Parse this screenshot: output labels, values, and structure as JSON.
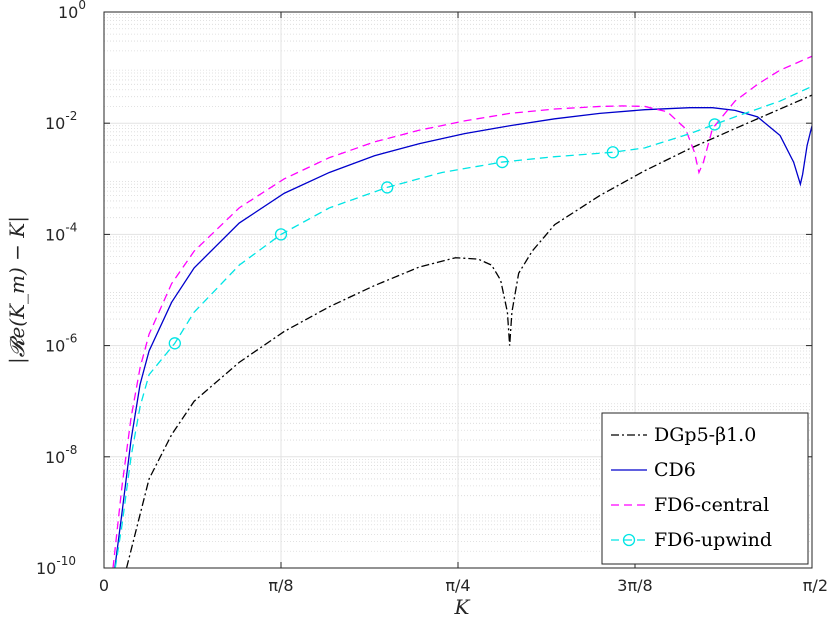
{
  "chart_data": {
    "type": "line",
    "xlabel": "K",
    "ylabel": "|𝓡e(K_m) − K|",
    "yscale": "log",
    "xlim": [
      0,
      1.5708
    ],
    "ylim": [
      1e-10,
      1
    ],
    "x_ticks": [
      {
        "value": 0,
        "label": "0"
      },
      {
        "value": 0.3927,
        "label": "π/8"
      },
      {
        "value": 0.7854,
        "label": "π/4"
      },
      {
        "value": 1.1781,
        "label": "3π/8"
      },
      {
        "value": 1.5708,
        "label": "π/2"
      }
    ],
    "y_ticks": [
      {
        "value": 1e-10,
        "base": "10",
        "exp": "-10"
      },
      {
        "value": 1e-08,
        "base": "10",
        "exp": "-8"
      },
      {
        "value": 1e-06,
        "base": "10",
        "exp": "-6"
      },
      {
        "value": 0.0001,
        "base": "10",
        "exp": "-4"
      },
      {
        "value": 0.01,
        "base": "10",
        "exp": "-2"
      },
      {
        "value": 1,
        "base": "10",
        "exp": "0"
      }
    ],
    "grid": true,
    "minor_grid": true,
    "legend_position": "bottom-right",
    "series": [
      {
        "name": "DGp5-β1.0",
        "color": "#000000",
        "style": "dashdot",
        "marker": "none",
        "points": [
          [
            0.05,
            1e-10
          ],
          [
            0.1,
            4e-09
          ],
          [
            0.15,
            2.5e-08
          ],
          [
            0.2,
            1e-07
          ],
          [
            0.3,
            5e-07
          ],
          [
            0.4,
            1.8e-06
          ],
          [
            0.5,
            5e-06
          ],
          [
            0.6,
            1.2e-05
          ],
          [
            0.7,
            2.6e-05
          ],
          [
            0.78,
            3.8e-05
          ],
          [
            0.83,
            3.6e-05
          ],
          [
            0.86,
            2.8e-05
          ],
          [
            0.88,
            1.5e-05
          ],
          [
            0.895,
            4e-06
          ],
          [
            0.9,
            1e-06
          ],
          [
            0.905,
            4e-06
          ],
          [
            0.92,
            2e-05
          ],
          [
            0.95,
            5e-05
          ],
          [
            1.0,
            0.00015
          ],
          [
            1.1,
            0.0005
          ],
          [
            1.2,
            0.0014
          ],
          [
            1.3,
            0.0035
          ],
          [
            1.4,
            0.008
          ],
          [
            1.5,
            0.018
          ],
          [
            1.5708,
            0.032
          ]
        ]
      },
      {
        "name": "CD6",
        "color": "#0000cc",
        "style": "solid",
        "marker": "none",
        "points": [
          [
            0.024,
            1e-10
          ],
          [
            0.04,
            1e-09
          ],
          [
            0.06,
            2e-08
          ],
          [
            0.08,
            2e-07
          ],
          [
            0.1,
            8e-07
          ],
          [
            0.15,
            6e-06
          ],
          [
            0.2,
            2.5e-05
          ],
          [
            0.3,
            0.00016
          ],
          [
            0.4,
            0.00055
          ],
          [
            0.5,
            0.0013
          ],
          [
            0.6,
            0.0026
          ],
          [
            0.7,
            0.0043
          ],
          [
            0.8,
            0.0065
          ],
          [
            0.9,
            0.009
          ],
          [
            1.0,
            0.012
          ],
          [
            1.1,
            0.015
          ],
          [
            1.2,
            0.0175
          ],
          [
            1.3,
            0.019
          ],
          [
            1.35,
            0.019
          ],
          [
            1.4,
            0.017
          ],
          [
            1.45,
            0.013
          ],
          [
            1.5,
            0.006
          ],
          [
            1.53,
            0.002
          ],
          [
            1.545,
            0.0008
          ],
          [
            1.55,
            0.0012
          ],
          [
            1.56,
            0.004
          ],
          [
            1.5708,
            0.009
          ]
        ]
      },
      {
        "name": "FD6-central",
        "color": "#ff00ff",
        "style": "dashed",
        "marker": "none",
        "points": [
          [
            0.02,
            1e-10
          ],
          [
            0.04,
            3e-09
          ],
          [
            0.06,
            5e-08
          ],
          [
            0.08,
            4e-07
          ],
          [
            0.1,
            1.6e-06
          ],
          [
            0.15,
            1.3e-05
          ],
          [
            0.2,
            5e-05
          ],
          [
            0.3,
            0.0003
          ],
          [
            0.4,
            0.001
          ],
          [
            0.5,
            0.0024
          ],
          [
            0.6,
            0.0046
          ],
          [
            0.7,
            0.0075
          ],
          [
            0.8,
            0.011
          ],
          [
            0.9,
            0.015
          ],
          [
            1.0,
            0.018
          ],
          [
            1.1,
            0.02
          ],
          [
            1.15,
            0.0205
          ],
          [
            1.2,
            0.02
          ],
          [
            1.25,
            0.016
          ],
          [
            1.29,
            0.008
          ],
          [
            1.31,
            0.003
          ],
          [
            1.32,
            0.0013
          ],
          [
            1.33,
            0.002
          ],
          [
            1.35,
            0.008
          ],
          [
            1.4,
            0.025
          ],
          [
            1.45,
            0.05
          ],
          [
            1.5,
            0.09
          ],
          [
            1.5708,
            0.16
          ]
        ]
      },
      {
        "name": "FD6-upwind",
        "color": "#00e5e5",
        "style": "dashed",
        "marker": "circle",
        "marker_at": [
          0.1571,
          0.3927,
          0.6283,
          0.8836,
          1.129,
          1.3548
        ],
        "points": [
          [
            0.025,
            1e-10
          ],
          [
            0.04,
            6e-10
          ],
          [
            0.06,
            1e-08
          ],
          [
            0.08,
            8e-08
          ],
          [
            0.1,
            3e-07
          ],
          [
            0.1571,
            1.1e-06
          ],
          [
            0.2,
            4e-06
          ],
          [
            0.3,
            2.8e-05
          ],
          [
            0.3927,
            0.0001
          ],
          [
            0.5,
            0.0003
          ],
          [
            0.6283,
            0.0007
          ],
          [
            0.75,
            0.0013
          ],
          [
            0.8836,
            0.002
          ],
          [
            1.0,
            0.0025
          ],
          [
            1.129,
            0.003
          ],
          [
            1.2,
            0.0036
          ],
          [
            1.3,
            0.0065
          ],
          [
            1.3548,
            0.0095
          ],
          [
            1.4,
            0.013
          ],
          [
            1.5,
            0.025
          ],
          [
            1.5708,
            0.046
          ]
        ]
      }
    ]
  }
}
